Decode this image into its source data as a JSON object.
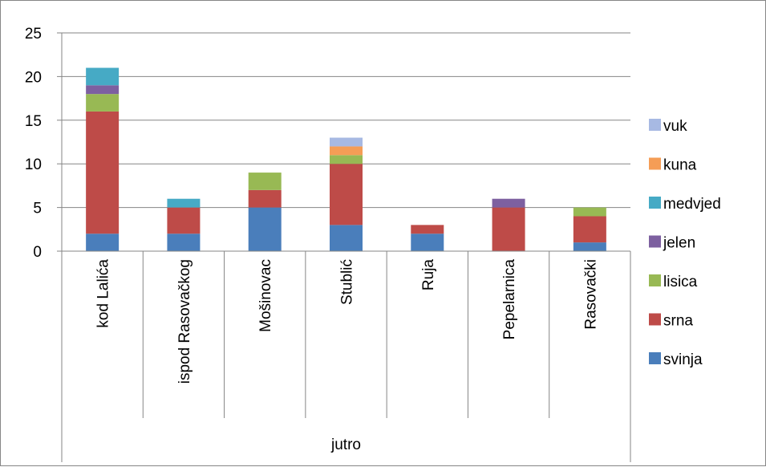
{
  "chart_data": {
    "type": "bar",
    "stacked": true,
    "group_label": "jutro",
    "categories": [
      "kod Lalića",
      "ispod Rasovačkog",
      "Mošinovac",
      "Stublić",
      "Ruja",
      "Pepelarnica",
      "Rasovački"
    ],
    "series": [
      {
        "name": "svinja",
        "color": "#4a7ebb",
        "values": [
          2,
          2,
          5,
          3,
          2,
          0,
          1
        ]
      },
      {
        "name": "srna",
        "color": "#be4b48",
        "values": [
          14,
          3,
          2,
          7,
          1,
          5,
          3
        ]
      },
      {
        "name": "lisica",
        "color": "#98b954",
        "values": [
          2,
          0,
          2,
          1,
          0,
          0,
          1
        ]
      },
      {
        "name": "jelen",
        "color": "#7d60a0",
        "values": [
          1,
          0,
          0,
          0,
          0,
          1,
          0
        ]
      },
      {
        "name": "medvjed",
        "color": "#46aac5",
        "values": [
          2,
          1,
          0,
          0,
          0,
          0,
          0
        ]
      },
      {
        "name": "kuna",
        "color": "#f59d56",
        "values": [
          0,
          0,
          0,
          1,
          0,
          0,
          0
        ]
      },
      {
        "name": "vuk",
        "color": "#a7b9e3",
        "values": [
          0,
          0,
          0,
          1,
          0,
          0,
          0
        ]
      }
    ],
    "ylim": [
      0,
      25
    ],
    "yticks": [
      0,
      5,
      10,
      15,
      20,
      25
    ],
    "grid": true,
    "legend_position": "right"
  }
}
